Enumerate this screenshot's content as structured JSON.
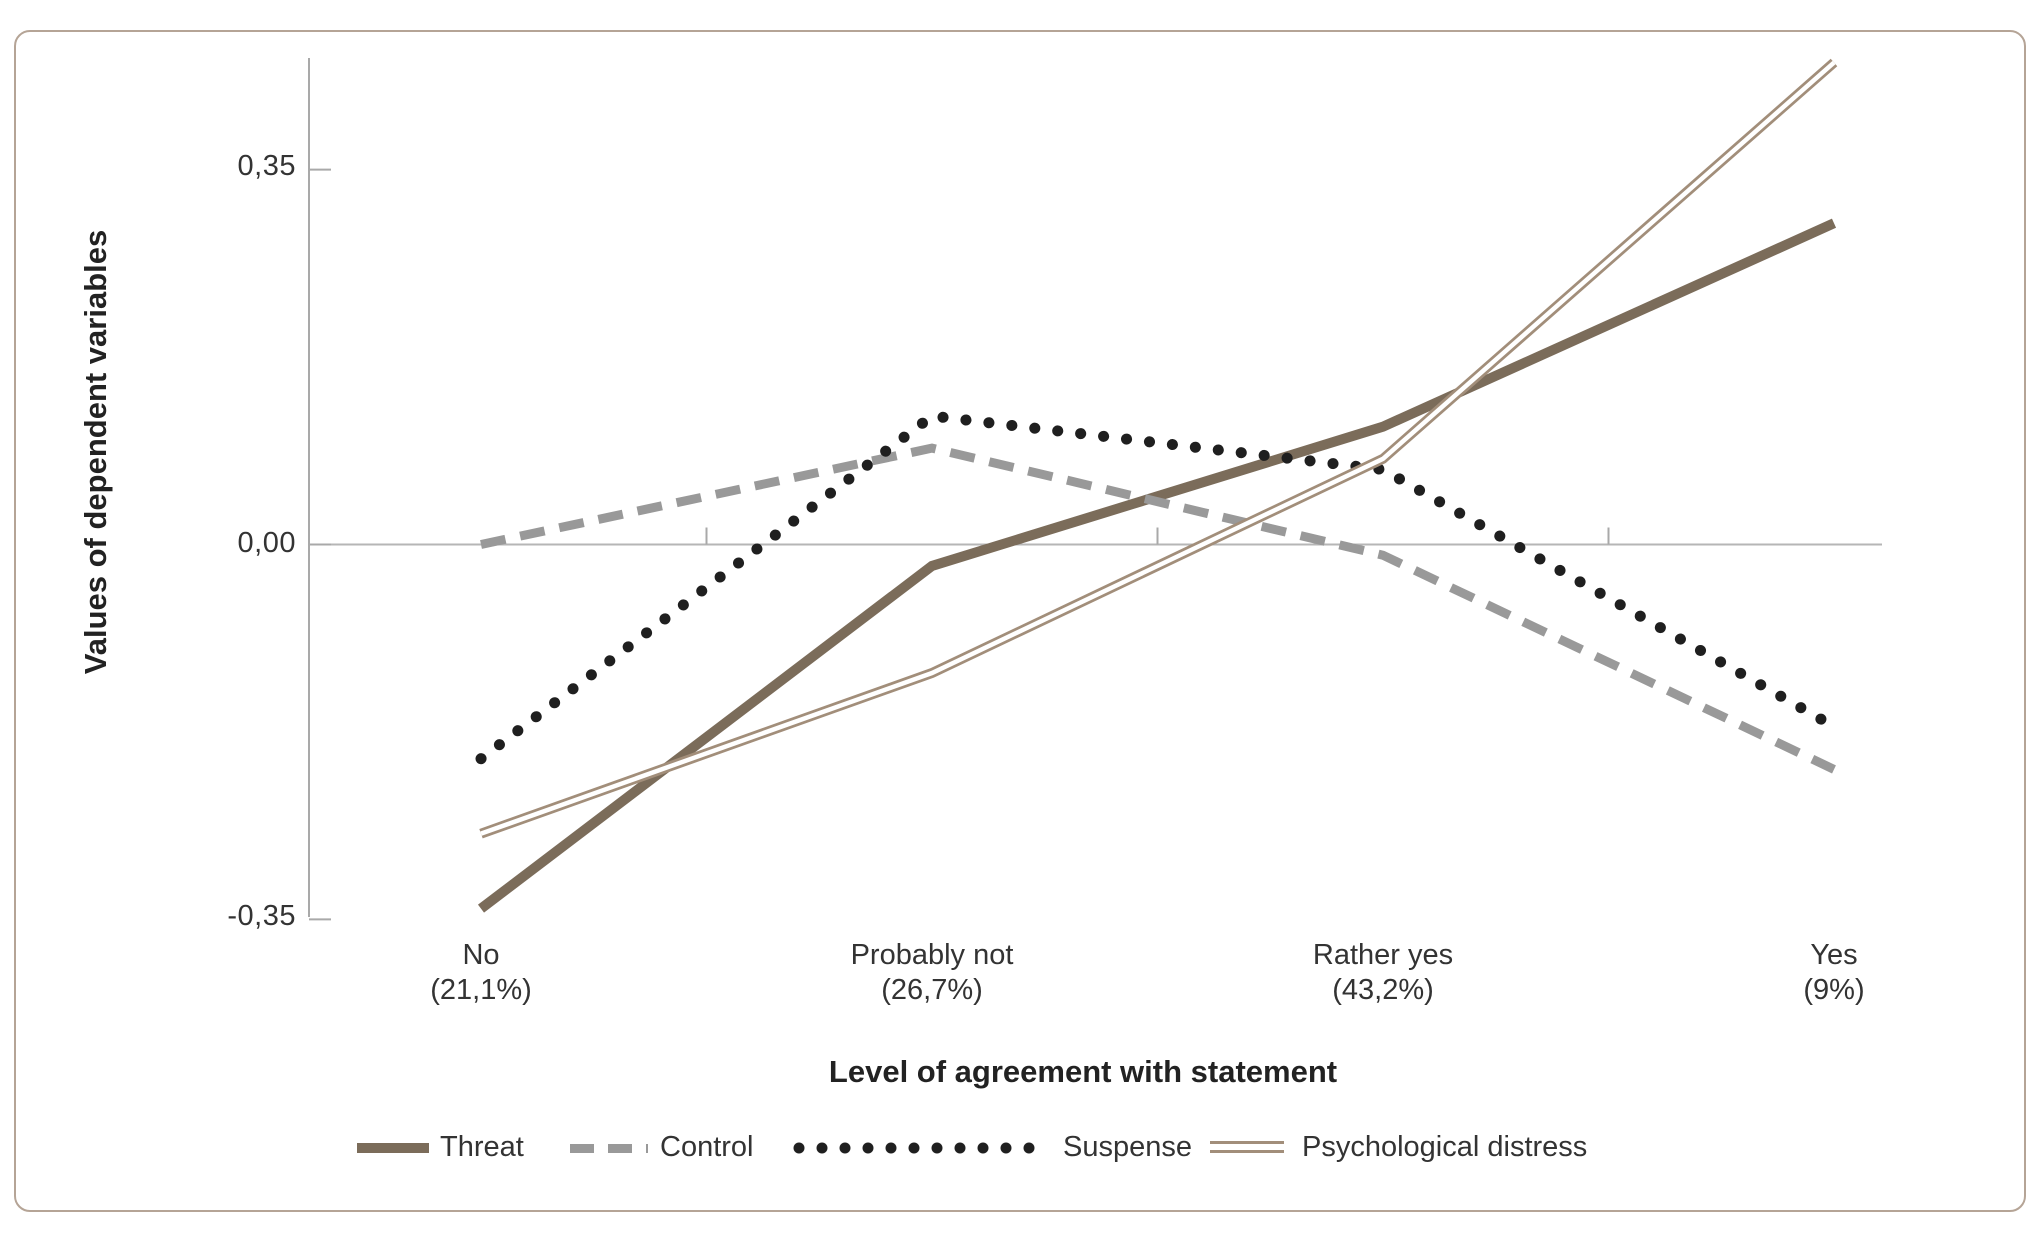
{
  "figure": {
    "border_color": "#b5a496",
    "background_color": "#ffffff",
    "axis_line_color": "#a9a9a9",
    "gridline_color": "#b6b6b6",
    "text_color": "#333333"
  },
  "chart_data": {
    "type": "line",
    "title": "",
    "xlabel": "Level of agreement with statement",
    "ylabel": "Values of dependent variables",
    "categories": [
      [
        "No",
        "(21,1%)"
      ],
      [
        "Probably not",
        "(26,7%)"
      ],
      [
        "Rather yes",
        "(43,2%)"
      ],
      [
        "Yes",
        "(9%)"
      ]
    ],
    "series": [
      {
        "name": "Threat",
        "style": "solid",
        "color": "#7b6c5a",
        "values": [
          -0.34,
          -0.02,
          0.11,
          0.3
        ]
      },
      {
        "name": "Control",
        "style": "dashed",
        "color": "#999999",
        "values": [
          0.0,
          0.09,
          -0.01,
          -0.21
        ]
      },
      {
        "name": "Suspense",
        "style": "dotted",
        "color": "#1f1f1f",
        "values": [
          -0.2,
          0.12,
          0.07,
          -0.17
        ]
      },
      {
        "name": "Psychological distress",
        "style": "double",
        "color": "#a28e7a",
        "values": [
          -0.27,
          -0.12,
          0.08,
          0.45
        ]
      }
    ],
    "y_ticks": [
      {
        "label": "0,35",
        "value": 0.35
      },
      {
        "label": "0,00",
        "value": 0.0
      },
      {
        "label": "-0,35",
        "value": -0.35
      }
    ],
    "ylim": [
      -0.35,
      0.45
    ],
    "grid": "zero-line-only",
    "legend_position": "bottom"
  }
}
